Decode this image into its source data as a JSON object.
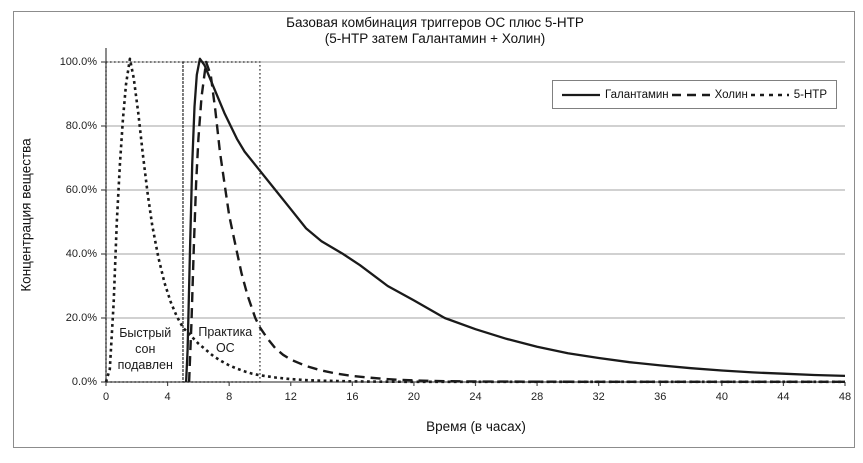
{
  "chart_data": {
    "type": "line",
    "title": "Базовая комбинация триггеров ОС плюс 5-HTP",
    "subtitle": "(5-HTP затем Галантамин + Холин)",
    "xlabel": "Время (в часах)",
    "ylabel": "Концентрация вещества",
    "xlim": [
      0,
      48
    ],
    "ylim_pct": [
      0,
      104
    ],
    "grid": true,
    "legend_position": "top-right",
    "x_ticks": [
      {
        "hour": 0,
        "label": "0"
      },
      {
        "hour": 4,
        "label": "4"
      },
      {
        "hour": 8,
        "label": "8"
      },
      {
        "hour": 12,
        "label": "12"
      },
      {
        "hour": 16,
        "label": "16"
      },
      {
        "hour": 20,
        "label": "20"
      },
      {
        "hour": 24,
        "label": "24"
      },
      {
        "hour": 28,
        "label": "28"
      },
      {
        "hour": 32,
        "label": "32"
      },
      {
        "hour": 36,
        "label": "36"
      },
      {
        "hour": 40,
        "label": "40"
      },
      {
        "hour": 44,
        "label": "44"
      },
      {
        "hour": 48,
        "label": "48"
      }
    ],
    "y_ticks": [
      {
        "pct": 0,
        "label": "0.0%"
      },
      {
        "pct": 20,
        "label": "20.0%"
      },
      {
        "pct": 40,
        "label": "40.0%"
      },
      {
        "pct": 60,
        "label": "60.0%"
      },
      {
        "pct": 80,
        "label": "80.0%"
      },
      {
        "pct": 100,
        "label": "100.0%"
      }
    ],
    "series": [
      {
        "id": "galantamin",
        "name": "Галантамин",
        "line_style": "solid",
        "points": [
          [
            5.2,
            0
          ],
          [
            5.3,
            10
          ],
          [
            5.45,
            40
          ],
          [
            5.6,
            68
          ],
          [
            5.75,
            86
          ],
          [
            5.9,
            96
          ],
          [
            6.1,
            101
          ],
          [
            6.4,
            99
          ],
          [
            7,
            92
          ],
          [
            7.7,
            84
          ],
          [
            8.5,
            76
          ],
          [
            9,
            72
          ],
          [
            10,
            66
          ],
          [
            11,
            60
          ],
          [
            12,
            54
          ],
          [
            13,
            48
          ],
          [
            14,
            44
          ],
          [
            15.4,
            40
          ],
          [
            16.5,
            36.5
          ],
          [
            18.3,
            30
          ],
          [
            20,
            25.5
          ],
          [
            22,
            20
          ],
          [
            24,
            16.5
          ],
          [
            26,
            13.5
          ],
          [
            28,
            11
          ],
          [
            30,
            9
          ],
          [
            32,
            7.5
          ],
          [
            34,
            6.2
          ],
          [
            36,
            5.2
          ],
          [
            38,
            4.3
          ],
          [
            40,
            3.6
          ],
          [
            42,
            3
          ],
          [
            44,
            2.6
          ],
          [
            46,
            2.2
          ],
          [
            48,
            1.9
          ]
        ]
      },
      {
        "id": "holin",
        "name": "Холин",
        "line_style": "long-dash",
        "points": [
          [
            5.4,
            0
          ],
          [
            5.55,
            18
          ],
          [
            5.7,
            42
          ],
          [
            5.85,
            62
          ],
          [
            6.0,
            76
          ],
          [
            6.2,
            89
          ],
          [
            6.5,
            100
          ],
          [
            6.8,
            96
          ],
          [
            7.1,
            85
          ],
          [
            7.4,
            72
          ],
          [
            7.7,
            62
          ],
          [
            8.0,
            52
          ],
          [
            8.4,
            43
          ],
          [
            8.8,
            34
          ],
          [
            9.2,
            27
          ],
          [
            9.7,
            20
          ],
          [
            10,
            17
          ],
          [
            10.5,
            13.5
          ],
          [
            11,
            10.5
          ],
          [
            11.5,
            8.5
          ],
          [
            12,
            7
          ],
          [
            12.5,
            6
          ],
          [
            13,
            5
          ],
          [
            14,
            3.6
          ],
          [
            15,
            2.6
          ],
          [
            16,
            1.9
          ],
          [
            17,
            1.4
          ],
          [
            18,
            1
          ],
          [
            19,
            0.7
          ],
          [
            20,
            0.5
          ],
          [
            22,
            0.25
          ],
          [
            24,
            0.15
          ],
          [
            28,
            0.1
          ],
          [
            32,
            0.05
          ],
          [
            48,
            0.05
          ]
        ]
      },
      {
        "id": "5-htp",
        "name": "5-HTP",
        "line_style": "short-dash",
        "points": [
          [
            0,
            0
          ],
          [
            0.25,
            4
          ],
          [
            0.5,
            25
          ],
          [
            0.7,
            50
          ],
          [
            0.9,
            68
          ],
          [
            1.1,
            82
          ],
          [
            1.3,
            93
          ],
          [
            1.55,
            101
          ],
          [
            1.8,
            95
          ],
          [
            2.1,
            84
          ],
          [
            2.4,
            71
          ],
          [
            2.7,
            59
          ],
          [
            3.0,
            49
          ],
          [
            3.4,
            39
          ],
          [
            3.8,
            31
          ],
          [
            4.2,
            25
          ],
          [
            4.6,
            20.5
          ],
          [
            5.0,
            17
          ],
          [
            5.5,
            14.5
          ],
          [
            6,
            12
          ],
          [
            6.5,
            10
          ],
          [
            7,
            8
          ],
          [
            7.5,
            6.5
          ],
          [
            8,
            5.2
          ],
          [
            8.5,
            4.2
          ],
          [
            9,
            3.3
          ],
          [
            9.5,
            2.6
          ],
          [
            10,
            2.1
          ],
          [
            11,
            1.4
          ],
          [
            12,
            0.9
          ],
          [
            13,
            0.6
          ],
          [
            14,
            0.4
          ],
          [
            15,
            0.3
          ],
          [
            16,
            0.2
          ],
          [
            18,
            0.1
          ],
          [
            20,
            0.07
          ],
          [
            24,
            0.05
          ],
          [
            48,
            0.05
          ]
        ]
      }
    ],
    "regions": [
      {
        "id": "rem-suppressed",
        "from_hour": 0,
        "to_hour": 5,
        "top_pct": 100,
        "label_lines": [
          "Быстрый",
          "сон",
          "подавлен"
        ],
        "label_center_hour": 2.55,
        "label_center_pct": 10.3
      },
      {
        "id": "ld-practice",
        "from_hour": 5,
        "to_hour": 10,
        "top_pct": 100,
        "label_lines": [
          "Практика",
          "ОС"
        ],
        "label_center_hour": 7.75,
        "label_center_pct": 13.1
      }
    ],
    "colors": {
      "line": "#1a1a1a",
      "grid": "#a3a3a3",
      "axis": "#4d4d4d",
      "frame_border": "#8c8c8c",
      "text": "#1a1a1a",
      "background": "#ffffff"
    }
  }
}
